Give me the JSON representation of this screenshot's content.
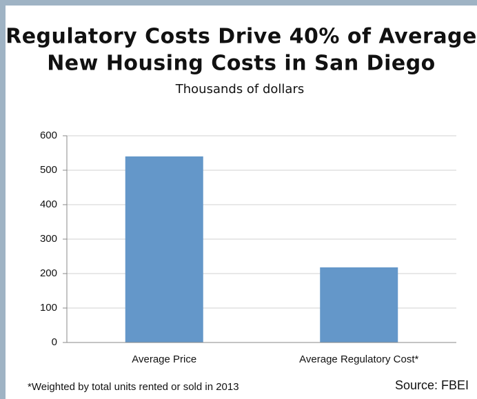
{
  "chart_data": {
    "type": "bar",
    "title": [
      "Regulatory Costs Drive 40% of Average",
      "New Housing Costs in San Diego"
    ],
    "subtitle": "Thousands of dollars",
    "categories": [
      "Average Price",
      "Average Regulatory Cost*"
    ],
    "values": [
      540,
      218
    ],
    "color": "#6497c9",
    "ylim": [
      0,
      600
    ],
    "yticks": [
      0,
      100,
      200,
      300,
      400,
      500,
      600
    ],
    "grid": true,
    "footnote": "*Weighted by total units rented or sold in 2013",
    "source": "Source: FBEI"
  }
}
